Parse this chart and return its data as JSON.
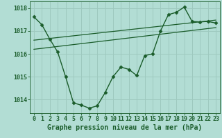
{
  "bg_color": "#b2ddd4",
  "grid_color": "#9ec9bf",
  "line_color": "#1a5c2a",
  "text_color": "#1a5c2a",
  "xlabel": "Graphe pression niveau de la mer (hPa)",
  "xlim": [
    -0.5,
    23.5
  ],
  "ylim": [
    1013.4,
    1018.3
  ],
  "yticks": [
    1014,
    1015,
    1016,
    1017,
    1018
  ],
  "xticks": [
    0,
    1,
    2,
    3,
    4,
    5,
    6,
    7,
    8,
    9,
    10,
    11,
    12,
    13,
    14,
    15,
    16,
    17,
    18,
    19,
    20,
    21,
    22,
    23
  ],
  "main_x": [
    0,
    1,
    2,
    3,
    4,
    5,
    6,
    7,
    8,
    9,
    10,
    11,
    12,
    13,
    14,
    15,
    16,
    17,
    18,
    19,
    20,
    21,
    22,
    23
  ],
  "main_y": [
    1017.62,
    1017.28,
    1016.65,
    1016.08,
    1015.0,
    1013.85,
    1013.75,
    1013.62,
    1013.72,
    1014.3,
    1015.0,
    1015.42,
    1015.32,
    1015.05,
    1015.92,
    1016.0,
    1017.0,
    1017.72,
    1017.82,
    1018.05,
    1017.42,
    1017.4,
    1017.42,
    1017.35
  ],
  "trend1_x": [
    0,
    23
  ],
  "trend1_y": [
    1016.2,
    1017.15
  ],
  "trend2_x": [
    0,
    23
  ],
  "trend2_y": [
    1016.6,
    1017.48
  ],
  "font_size_label": 7,
  "font_size_tick": 6,
  "marker": "D",
  "marker_size": 2.5,
  "line_width": 1.0,
  "trend_lw": 0.9
}
